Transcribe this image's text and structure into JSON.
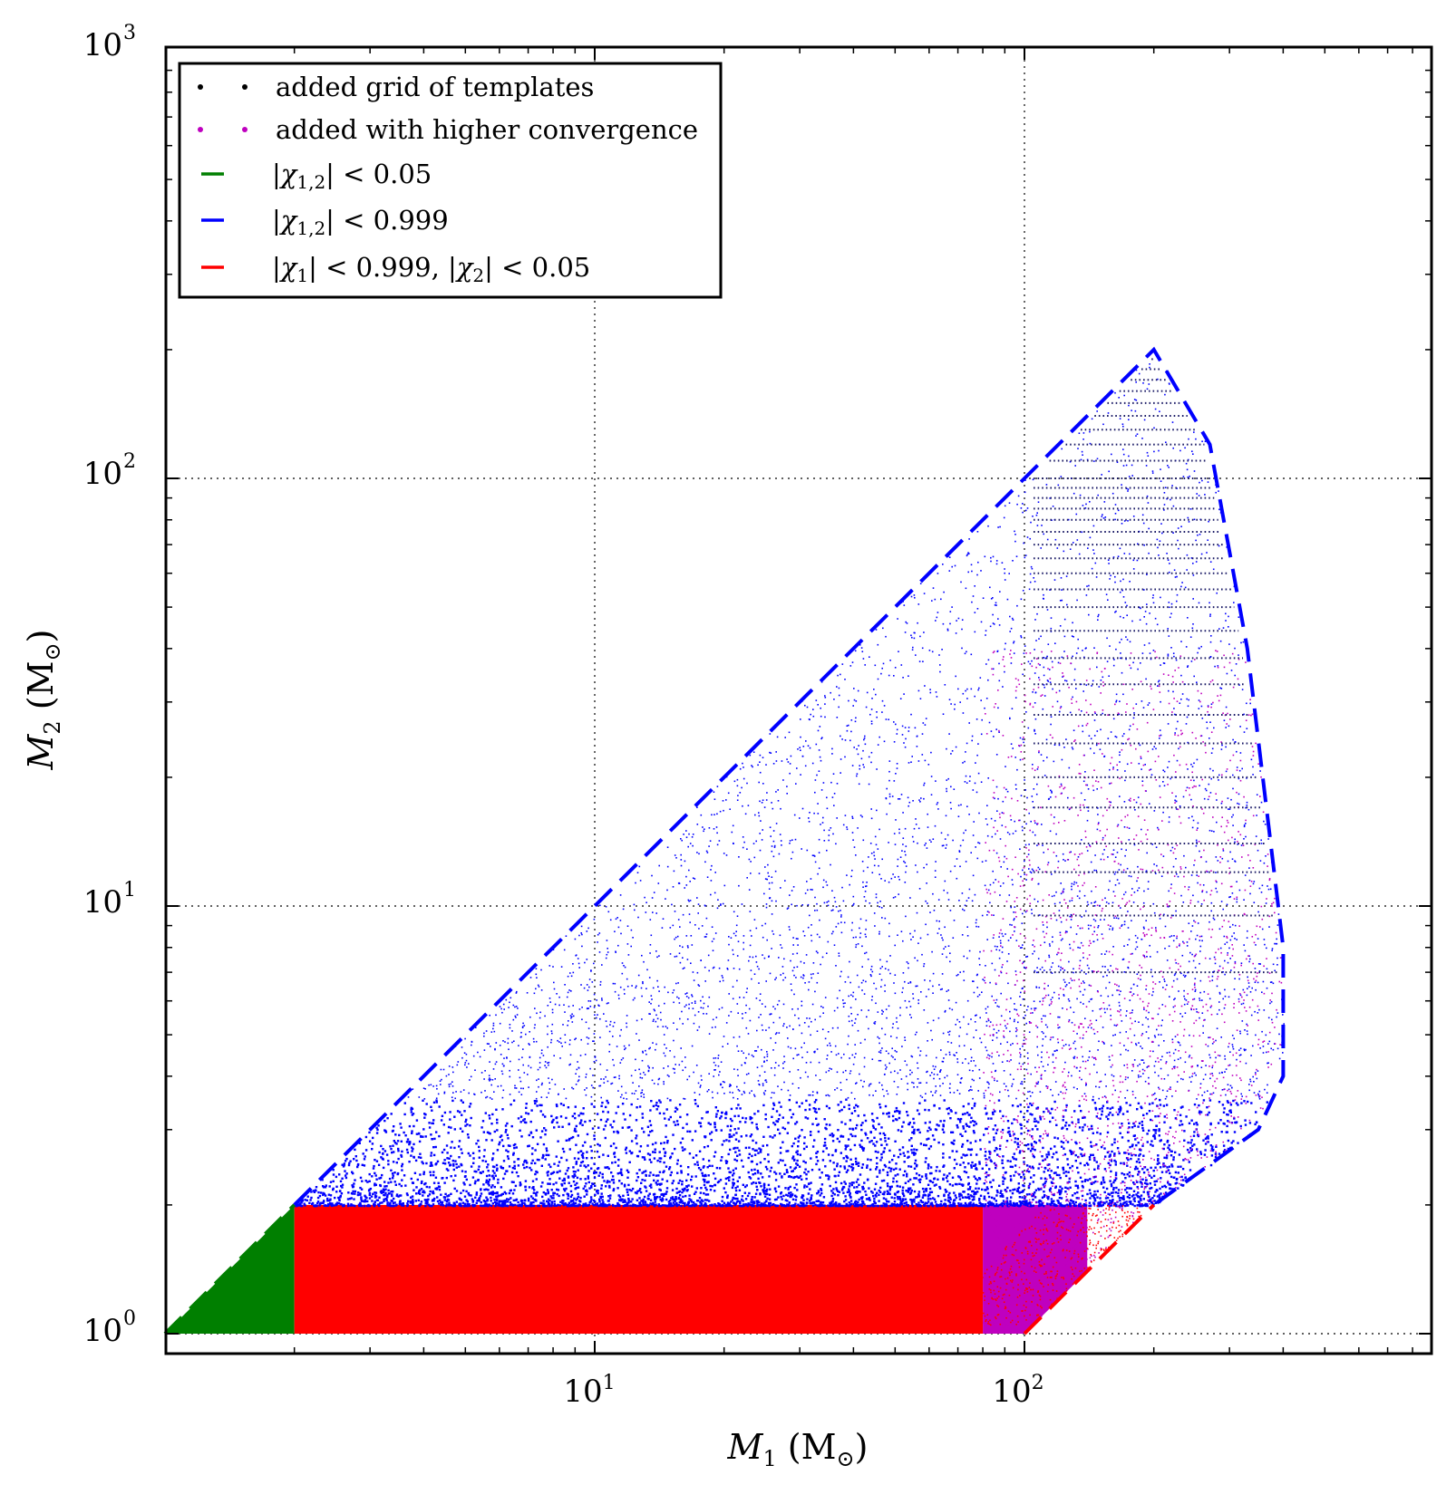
{
  "chart_data": {
    "type": "scatter",
    "title": "",
    "xlabel": "M1 (M⊙)",
    "ylabel": "M2 (M⊙)",
    "xscale": "log",
    "yscale": "log",
    "xlim": [
      1.0,
      1000.0
    ],
    "ylim": [
      1.0,
      1000.0
    ],
    "x_tick_labels": [
      "10^1",
      "10^2"
    ],
    "y_tick_labels": [
      "10^0",
      "10^1",
      "10^2",
      "10^3"
    ],
    "grid": true,
    "legend_position": "top-left",
    "regions": [
      {
        "name": "green",
        "color": "#007f00",
        "x_range": [
          1.0,
          2.0
        ],
        "y_range": [
          1.0,
          2.0
        ],
        "bound": "M2 <= M1"
      },
      {
        "name": "red",
        "color": "#ff0000",
        "x_range": [
          2.0,
          80.0
        ],
        "y_range": [
          1.0,
          2.0
        ]
      },
      {
        "name": "magenta",
        "color": "#bf00bf",
        "x_range": [
          80.0,
          100.0
        ],
        "y_range": [
          1.0,
          2.0
        ]
      },
      {
        "name": "blue",
        "color": "#0000ff",
        "x_range": [
          2.0,
          400.0
        ],
        "y_range": [
          2.0,
          200.0
        ]
      }
    ],
    "boundary_lines": [
      {
        "color": "#0000ff",
        "style": "dashed",
        "points": [
          [
            2,
            2
          ],
          [
            100,
            100
          ],
          [
            200,
            200
          ],
          [
            270,
            120
          ],
          [
            330,
            40
          ],
          [
            400,
            8
          ],
          [
            400,
            4
          ],
          [
            350,
            3
          ],
          [
            200,
            2
          ]
        ]
      },
      {
        "color": "#007f00",
        "style": "dashed",
        "points": [
          [
            1,
            1
          ],
          [
            2,
            2
          ]
        ]
      },
      {
        "color": "#ff0000",
        "style": "dashed",
        "points": [
          [
            100,
            1
          ],
          [
            200,
            2
          ]
        ]
      }
    ],
    "grid_rows_M2": [
      7,
      9.5,
      12,
      14,
      17,
      20,
      24,
      28,
      33,
      38,
      44,
      50,
      55,
      60,
      65,
      70,
      75,
      80,
      85,
      90,
      95,
      100,
      110,
      120,
      130,
      140,
      150,
      160,
      170,
      180,
      190
    ],
    "legend": [
      {
        "label": "added grid of templates",
        "marker": "dots",
        "color": "#000000"
      },
      {
        "label": "added with higher convergence",
        "marker": "dots",
        "color": "#bf00bf"
      },
      {
        "label": "|χ1,2| < 0.05",
        "marker": "dash",
        "color": "#007f00"
      },
      {
        "label": "|χ1,2| < 0.999",
        "marker": "dash",
        "color": "#0000ff"
      },
      {
        "label": "|χ1| < 0.999, |χ2| < 0.05",
        "marker": "dash",
        "color": "#ff0000"
      }
    ]
  }
}
